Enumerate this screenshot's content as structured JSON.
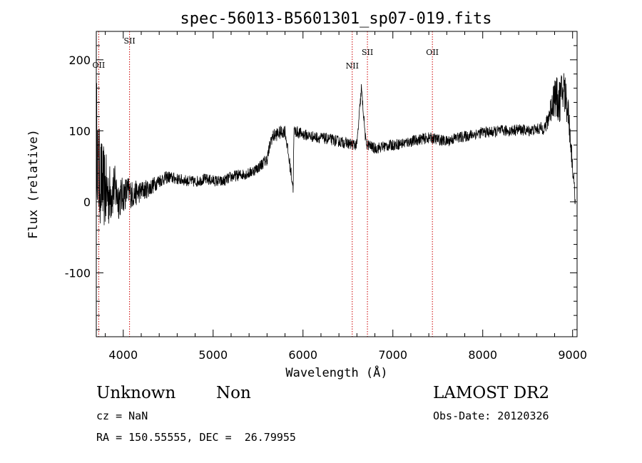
{
  "chart_data": {
    "type": "line",
    "title": "spec-56013-B5601301_sp07-019.fits",
    "xlabel": "Wavelength (Å)",
    "ylabel": "Flux (relative)",
    "xlim": [
      3700,
      9050
    ],
    "ylim": [
      -190,
      240
    ],
    "xticks": [
      4000,
      5000,
      6000,
      7000,
      8000,
      9000
    ],
    "yticks": [
      -100,
      0,
      100,
      200
    ],
    "x_minor_step": 200,
    "y_minor_step": 20,
    "line_color": "#000000",
    "marker_color": "#cc0000",
    "spectrum_profile": {
      "x": [
        3700,
        3720,
        3750,
        3800,
        3850,
        3900,
        3950,
        4000,
        4050,
        4100,
        4200,
        4300,
        4400,
        4500,
        4600,
        4700,
        4800,
        4900,
        5000,
        5100,
        5200,
        5300,
        5400,
        5500,
        5600,
        5650,
        5700,
        5800,
        5890,
        5900,
        6000,
        6100,
        6200,
        6300,
        6400,
        6500,
        6600,
        6650,
        6700,
        6800,
        6900,
        7000,
        7100,
        7200,
        7300,
        7400,
        7500,
        7600,
        7700,
        7800,
        7900,
        8000,
        8100,
        8200,
        8300,
        8400,
        8500,
        8600,
        8700,
        8800,
        8850,
        8900,
        8950,
        9000,
        9030
      ],
      "y": [
        120,
        40,
        30,
        15,
        10,
        20,
        5,
        10,
        15,
        10,
        15,
        20,
        30,
        35,
        32,
        30,
        28,
        32,
        30,
        28,
        35,
        38,
        40,
        48,
        60,
        90,
        95,
        100,
        20,
        100,
        95,
        92,
        90,
        88,
        85,
        82,
        80,
        160,
        82,
        75,
        78,
        80,
        82,
        85,
        88,
        90,
        88,
        85,
        90,
        92,
        95,
        98,
        98,
        100,
        100,
        102,
        100,
        102,
        105,
        150,
        140,
        160,
        130,
        50,
        0
      ],
      "noise_amplitude": [
        150,
        150,
        130,
        110,
        90,
        70,
        60,
        50,
        45,
        40,
        30,
        25,
        20,
        18,
        16,
        16,
        16,
        16,
        16,
        16,
        16,
        16,
        16,
        16,
        18,
        20,
        20,
        18,
        18,
        18,
        16,
        16,
        16,
        16,
        16,
        16,
        16,
        16,
        16,
        16,
        16,
        16,
        16,
        16,
        16,
        16,
        16,
        16,
        16,
        16,
        16,
        16,
        16,
        16,
        16,
        16,
        16,
        16,
        20,
        60,
        60,
        70,
        50,
        30,
        20
      ]
    },
    "line_markers": [
      {
        "label": "OII",
        "x": 3727
      },
      {
        "label": "SII",
        "x": 4070
      },
      {
        "label": "NII",
        "x": 6548
      },
      {
        "label": "SII",
        "x": 6717
      },
      {
        "label": "OII",
        "x": 7440
      }
    ]
  },
  "info": {
    "object_class": "Unknown",
    "object_subclass": "Non",
    "survey": "LAMOST DR2",
    "redshift": "cz = NaN",
    "obs_date": "Obs-Date: 20120326",
    "coords": "RA = 150.55555, DEC =  26.79955"
  }
}
